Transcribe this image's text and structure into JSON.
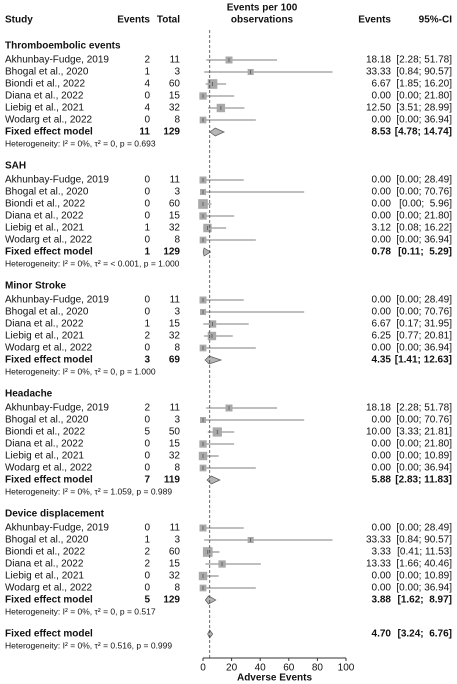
{
  "chart_data": {
    "type": "forest",
    "columns": {
      "study": "Study",
      "events": "Events",
      "total": "Total",
      "plot": [
        "Events per 100",
        "observations"
      ],
      "estimate": "Events",
      "ci": "95%-CI"
    },
    "xlabel": "Adverse Events",
    "xlim": [
      0,
      100
    ],
    "xticks": [
      0,
      20,
      40,
      60,
      80,
      100
    ],
    "colors": {
      "box": "#a9a9a9",
      "diamond": "#b5b5b5",
      "line": "#555555"
    },
    "groups": [
      {
        "title": "Thromboembolic events",
        "studies": [
          {
            "name": "Akhunbay-Fudge, 2019",
            "events": 2,
            "total": 11,
            "estimate": 18.18,
            "estimate_label": "18.18",
            "ci": [
              2.28,
              51.78
            ],
            "ci_label": "[2.28; 51.78]"
          },
          {
            "name": "Bhogal et al., 2020",
            "events": 1,
            "total": 3,
            "estimate": 33.33,
            "estimate_label": "33.33",
            "ci": [
              0.84,
              90.57
            ],
            "ci_label": "[0.84; 90.57]"
          },
          {
            "name": "Biondi et al., 2022",
            "events": 4,
            "total": 60,
            "estimate": 6.67,
            "estimate_label": "6.67",
            "ci": [
              1.85,
              16.2
            ],
            "ci_label": "[1.85; 16.20]"
          },
          {
            "name": "Diana et al., 2022",
            "events": 0,
            "total": 15,
            "estimate": 0,
            "estimate_label": "0.00",
            "ci": [
              0,
              21.8
            ],
            "ci_label": "[0.00; 21.80]"
          },
          {
            "name": "Liebig et al., 2021",
            "events": 4,
            "total": 32,
            "estimate": 12.5,
            "estimate_label": "12.50",
            "ci": [
              3.51,
              28.99
            ],
            "ci_label": "[3.51; 28.99]"
          },
          {
            "name": "Wodarg et al., 2022",
            "events": 0,
            "total": 8,
            "estimate": 0,
            "estimate_label": "0.00",
            "ci": [
              0,
              36.94
            ],
            "ci_label": "[0.00; 36.94]"
          }
        ],
        "fixed": {
          "name": "Fixed effect model",
          "events": 11,
          "total": 129,
          "estimate": 8.53,
          "estimate_label": "8.53",
          "ci": [
            4.78,
            14.74
          ],
          "ci_label": "[4.78; 14.74]"
        },
        "heterogeneity": "Heterogeneity: I² = 0%, τ² = 0, p = 0.693"
      },
      {
        "title": "SAH",
        "studies": [
          {
            "name": "Akhunbay-Fudge, 2019",
            "events": 0,
            "total": 11,
            "estimate": 0,
            "estimate_label": "0.00",
            "ci": [
              0,
              28.49
            ],
            "ci_label": "[0.00; 28.49]"
          },
          {
            "name": "Bhogal et al., 2020",
            "events": 0,
            "total": 3,
            "estimate": 0,
            "estimate_label": "0.00",
            "ci": [
              0,
              70.76
            ],
            "ci_label": "[0.00; 70.76]"
          },
          {
            "name": "Biondi et al., 2022",
            "events": 0,
            "total": 60,
            "estimate": 0,
            "estimate_label": "0.00",
            "ci": [
              0,
              5.96
            ],
            "ci_label": "[0.00;  5.96]"
          },
          {
            "name": "Diana et al., 2022",
            "events": 0,
            "total": 15,
            "estimate": 0,
            "estimate_label": "0.00",
            "ci": [
              0,
              21.8
            ],
            "ci_label": "[0.00; 21.80]"
          },
          {
            "name": "Liebig et al., 2021",
            "events": 1,
            "total": 32,
            "estimate": 3.12,
            "estimate_label": "3.12",
            "ci": [
              0.08,
              16.22
            ],
            "ci_label": "[0.08; 16.22]"
          },
          {
            "name": "Wodarg et al., 2022",
            "events": 0,
            "total": 8,
            "estimate": 0,
            "estimate_label": "0.00",
            "ci": [
              0,
              36.94
            ],
            "ci_label": "[0.00; 36.94]"
          }
        ],
        "fixed": {
          "name": "Fixed effect model",
          "events": 1,
          "total": 129,
          "estimate": 0.78,
          "estimate_label": "0.78",
          "ci": [
            0.11,
            5.29
          ],
          "ci_label": "[0.11;  5.29]"
        },
        "heterogeneity": "Heterogeneity: I² = 0%, τ² = < 0.001, p = 1.000"
      },
      {
        "title": "Minor Stroke",
        "studies": [
          {
            "name": "Akhunbay-Fudge, 2019",
            "events": 0,
            "total": 11,
            "estimate": 0,
            "estimate_label": "0.00",
            "ci": [
              0,
              28.49
            ],
            "ci_label": "[0.00; 28.49]"
          },
          {
            "name": "Bhogal et al., 2020",
            "events": 0,
            "total": 3,
            "estimate": 0,
            "estimate_label": "0.00",
            "ci": [
              0,
              70.76
            ],
            "ci_label": "[0.00; 70.76]"
          },
          {
            "name": "Diana et al., 2022",
            "events": 1,
            "total": 15,
            "estimate": 6.67,
            "estimate_label": "6.67",
            "ci": [
              0.17,
              31.95
            ],
            "ci_label": "[0.17; 31.95]"
          },
          {
            "name": "Liebig et al., 2021",
            "events": 2,
            "total": 32,
            "estimate": 6.25,
            "estimate_label": "6.25",
            "ci": [
              0.77,
              20.81
            ],
            "ci_label": "[0.77; 20.81]"
          },
          {
            "name": "Wodarg et al., 2022",
            "events": 0,
            "total": 8,
            "estimate": 0,
            "estimate_label": "0.00",
            "ci": [
              0,
              36.94
            ],
            "ci_label": "[0.00; 36.94]"
          }
        ],
        "fixed": {
          "name": "Fixed effect model",
          "events": 3,
          "total": 69,
          "estimate": 4.35,
          "estimate_label": "4.35",
          "ci": [
            1.41,
            12.63
          ],
          "ci_label": "[1.41; 12.63]"
        },
        "heterogeneity": "Heterogeneity: I² = 0%, τ² = 0, p = 1.000"
      },
      {
        "title": "Headache",
        "studies": [
          {
            "name": "Akhunbay-Fudge, 2019",
            "events": 2,
            "total": 11,
            "estimate": 18.18,
            "estimate_label": "18.18",
            "ci": [
              2.28,
              51.78
            ],
            "ci_label": "[2.28; 51.78]"
          },
          {
            "name": "Bhogal et al., 2020",
            "events": 0,
            "total": 3,
            "estimate": 0,
            "estimate_label": "0.00",
            "ci": [
              0,
              70.76
            ],
            "ci_label": "[0.00; 70.76]"
          },
          {
            "name": "Biondi et al., 2022",
            "events": 5,
            "total": 50,
            "estimate": 10,
            "estimate_label": "10.00",
            "ci": [
              3.33,
              21.81
            ],
            "ci_label": "[3.33; 21.81]"
          },
          {
            "name": "Diana et al., 2022",
            "events": 0,
            "total": 15,
            "estimate": 0,
            "estimate_label": "0.00",
            "ci": [
              0,
              21.8
            ],
            "ci_label": "[0.00; 21.80]"
          },
          {
            "name": "Liebig et al., 2021",
            "events": 0,
            "total": 32,
            "estimate": 0,
            "estimate_label": "0.00",
            "ci": [
              0,
              10.89
            ],
            "ci_label": "[0.00; 10.89]"
          },
          {
            "name": "Wodarg et al., 2022",
            "events": 0,
            "total": 8,
            "estimate": 0,
            "estimate_label": "0.00",
            "ci": [
              0,
              36.94
            ],
            "ci_label": "[0.00; 36.94]"
          }
        ],
        "fixed": {
          "name": "Fixed effect model",
          "events": 7,
          "total": 119,
          "estimate": 5.88,
          "estimate_label": "5.88",
          "ci": [
            2.83,
            11.83
          ],
          "ci_label": "[2.83; 11.83]"
        },
        "heterogeneity": "Heterogeneity: I² = 0%, τ² = 1.059, p = 0.989"
      },
      {
        "title": "Device displacement",
        "studies": [
          {
            "name": "Akhunbay-Fudge, 2019",
            "events": 0,
            "total": 11,
            "estimate": 0,
            "estimate_label": "0.00",
            "ci": [
              0,
              28.49
            ],
            "ci_label": "[0.00; 28.49]"
          },
          {
            "name": "Bhogal et al., 2020",
            "events": 1,
            "total": 3,
            "estimate": 33.33,
            "estimate_label": "33.33",
            "ci": [
              0.84,
              90.57
            ],
            "ci_label": "[0.84; 90.57]"
          },
          {
            "name": "Biondi et al., 2022",
            "events": 2,
            "total": 60,
            "estimate": 3.33,
            "estimate_label": "3.33",
            "ci": [
              0.41,
              11.53
            ],
            "ci_label": "[0.41; 11.53]"
          },
          {
            "name": "Diana et al., 2022",
            "events": 2,
            "total": 15,
            "estimate": 13.33,
            "estimate_label": "13.33",
            "ci": [
              1.66,
              40.46
            ],
            "ci_label": "[1.66; 40.46]"
          },
          {
            "name": "Liebig et al., 2021",
            "events": 0,
            "total": 32,
            "estimate": 0,
            "estimate_label": "0.00",
            "ci": [
              0,
              10.89
            ],
            "ci_label": "[0.00; 10.89]"
          },
          {
            "name": "Wodarg et al., 2022",
            "events": 0,
            "total": 8,
            "estimate": 0,
            "estimate_label": "0.00",
            "ci": [
              0,
              36.94
            ],
            "ci_label": "[0.00; 36.94]"
          }
        ],
        "fixed": {
          "name": "Fixed effect model",
          "events": 5,
          "total": 129,
          "estimate": 3.88,
          "estimate_label": "3.88",
          "ci": [
            1.62,
            8.97
          ],
          "ci_label": "[1.62;  8.97]"
        },
        "heterogeneity": "Heterogeneity: I² = 0%, τ² = 0, p = 0.517"
      }
    ],
    "overall": {
      "name": "Fixed effect model",
      "estimate": 4.7,
      "estimate_label": "4.70",
      "ci": [
        3.24,
        6.76
      ],
      "ci_label": "[3.24;  6.76]",
      "heterogeneity": "Heterogeneity: I² = 0%, τ² = 0.516, p = 0.999"
    }
  }
}
